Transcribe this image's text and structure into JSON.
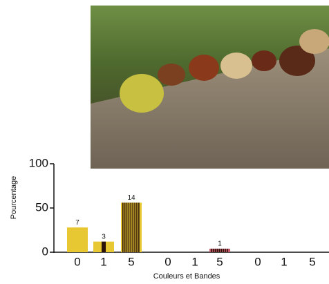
{
  "chart_data": {
    "type": "bar",
    "ylabel": "Pourcentage",
    "xlabel": "Couleurs et Bandes",
    "categories": [
      "0",
      "1",
      "5",
      "0",
      "1",
      "5",
      "0",
      "1",
      "5"
    ],
    "values": [
      28,
      12,
      56,
      0,
      0,
      4,
      0,
      0,
      0
    ],
    "counts": [
      "7",
      "3",
      "14",
      null,
      null,
      "1",
      null,
      null,
      null
    ],
    "colors": [
      "#e8c832",
      "#e8c832",
      "#e8c832",
      "#c45a6e",
      "#c45a6e",
      "#c45a6e",
      "#8a5a2a",
      "#8a5a2a",
      "#8a5a2a"
    ],
    "stripe_color": "#2a1208",
    "ylim": [
      0,
      100
    ],
    "yticks": [
      0,
      50,
      100
    ]
  }
}
